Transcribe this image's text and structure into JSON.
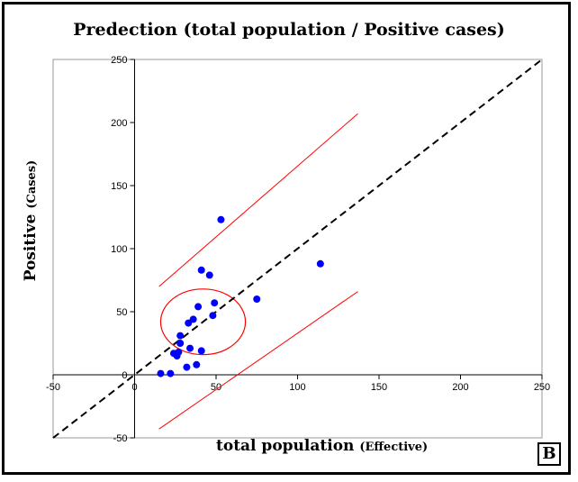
{
  "panel_label": "B",
  "chart_data": {
    "type": "scatter",
    "title": "Predection (total population / Positive cases)",
    "xlabel_main": "total population",
    "xlabel_sub": "(Effective)",
    "ylabel_main": "Positive",
    "ylabel_sub": "(Cases)",
    "xlim": [
      -50,
      250
    ],
    "ylim": [
      -50,
      250
    ],
    "x_ticks": [
      -50,
      0,
      50,
      100,
      150,
      200,
      250
    ],
    "y_ticks": [
      -50,
      0,
      50,
      100,
      150,
      200,
      250
    ],
    "grid": false,
    "points": [
      {
        "x": 16,
        "y": 1
      },
      {
        "x": 22,
        "y": 1
      },
      {
        "x": 24,
        "y": 17
      },
      {
        "x": 26,
        "y": 15
      },
      {
        "x": 27,
        "y": 18
      },
      {
        "x": 28,
        "y": 25
      },
      {
        "x": 28,
        "y": 31
      },
      {
        "x": 32,
        "y": 6
      },
      {
        "x": 33,
        "y": 41
      },
      {
        "x": 34,
        "y": 21
      },
      {
        "x": 36,
        "y": 44
      },
      {
        "x": 38,
        "y": 8
      },
      {
        "x": 39,
        "y": 54
      },
      {
        "x": 41,
        "y": 19
      },
      {
        "x": 41,
        "y": 83
      },
      {
        "x": 46,
        "y": 79
      },
      {
        "x": 48,
        "y": 47
      },
      {
        "x": 49,
        "y": 57
      },
      {
        "x": 53,
        "y": 123
      },
      {
        "x": 75,
        "y": 60
      },
      {
        "x": 114,
        "y": 88
      }
    ],
    "identity_line": {
      "style": "dashed",
      "color": "#000000",
      "from": [
        -50,
        -50
      ],
      "to": [
        250,
        250
      ]
    },
    "upper_band": {
      "color": "#ff0000",
      "from": [
        15,
        70
      ],
      "to": [
        137,
        207
      ]
    },
    "lower_band": {
      "color": "#ff0000",
      "from": [
        15,
        -43
      ],
      "to": [
        137,
        66
      ]
    },
    "highlight_circle": {
      "color": "#ff0000",
      "center": [
        42,
        42
      ],
      "radius": 26
    },
    "point_color": "#0000ff"
  }
}
